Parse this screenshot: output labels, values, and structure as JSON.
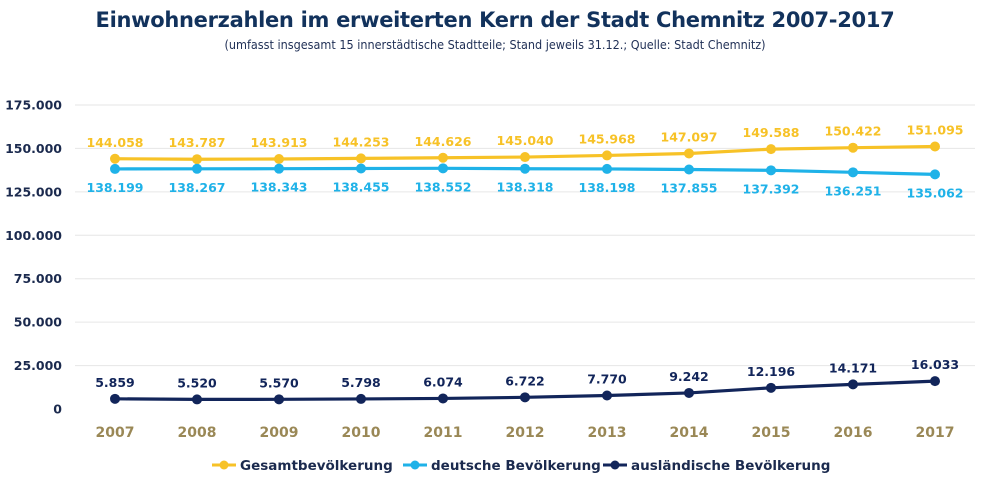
{
  "chart_data": {
    "type": "line",
    "title": "Einwohnerzahlen im erweiterten Kern der Stadt Chemnitz 2007-2017",
    "subtitle": "(umfasst insgesamt 15 innerstädtische Stadtteile; Stand jeweils 31.12.; Quelle: Stadt Chemnitz)",
    "x": [
      "2007",
      "2008",
      "2009",
      "2010",
      "2011",
      "2012",
      "2013",
      "2014",
      "2015",
      "2016",
      "2017"
    ],
    "ylim": [
      0,
      175000
    ],
    "yticks": [
      0,
      25000,
      50000,
      75000,
      100000,
      125000,
      150000,
      175000
    ],
    "ytick_labels": [
      "0",
      "25.000",
      "50.000",
      "75.000",
      "100.000",
      "125.000",
      "150.000",
      "175.000"
    ],
    "grid": true,
    "legend_position": "bottom",
    "series": [
      {
        "name": "Gesamtbevölkerung",
        "color": "#f7c227",
        "label_position": "above",
        "values": [
          144058,
          143787,
          143913,
          144253,
          144626,
          145040,
          145968,
          147097,
          149588,
          150422,
          151095
        ],
        "labels": [
          "144.058",
          "143.787",
          "143.913",
          "144.253",
          "144.626",
          "145.040",
          "145.968",
          "147.097",
          "149.588",
          "150.422",
          "151.095"
        ]
      },
      {
        "name": "deutsche Bevölkerung",
        "color": "#1fb2e8",
        "label_position": "below",
        "values": [
          138199,
          138267,
          138343,
          138455,
          138552,
          138318,
          138198,
          137855,
          137392,
          136251,
          135062
        ],
        "labels": [
          "138.199",
          "138.267",
          "138.343",
          "138.455",
          "138.552",
          "138.318",
          "138.198",
          "137.855",
          "137.392",
          "136.251",
          "135.062"
        ]
      },
      {
        "name": "ausländische Bevölkerung",
        "color": "#12255a",
        "label_position": "above",
        "values": [
          5859,
          5520,
          5570,
          5798,
          6074,
          6722,
          7770,
          9242,
          12196,
          14171,
          16033
        ],
        "labels": [
          "5.859",
          "5.520",
          "5.570",
          "5.798",
          "6.074",
          "6.722",
          "7.770",
          "9.242",
          "12.196",
          "14.171",
          "16.033"
        ]
      }
    ]
  }
}
